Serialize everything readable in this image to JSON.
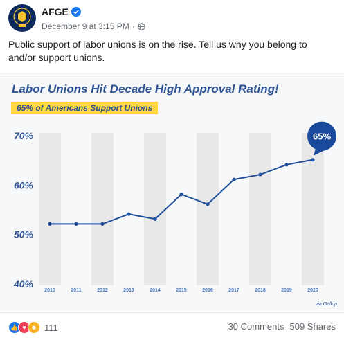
{
  "post": {
    "author": "AFGE",
    "timestamp": "December 9 at 3:15 PM",
    "separator": "·",
    "more_label": "···",
    "text": "Public support of labor unions is on the rise. Tell us why you belong to and/or support unions."
  },
  "icons": {
    "verified": "verified-badge-icon",
    "audience": "globe-icon",
    "reactions": [
      "like-icon",
      "love-icon",
      "haha-icon"
    ]
  },
  "colors": {
    "brand_blue": "#2f5597",
    "line": "#1f4e9a",
    "highlight": "#ffd93d",
    "stripe": "#e8e8e8"
  },
  "chart_data": {
    "type": "line",
    "title": "Labor Unions Hit Decade High Approval Rating!",
    "subtitle": "65% of Americans Support Unions",
    "x": [
      "2010",
      "2011",
      "2012",
      "2013",
      "2014",
      "2015",
      "2016",
      "2017",
      "2018",
      "2019",
      "2020"
    ],
    "values": [
      52,
      52,
      52,
      54,
      53,
      58,
      56,
      61,
      62,
      64,
      65
    ],
    "yticks": [
      "70%",
      "60%",
      "50%",
      "40%"
    ],
    "ylim": [
      40,
      70
    ],
    "callout": "65%",
    "source": "via Gallup",
    "grid": "alternating vertical stripes"
  },
  "footer": {
    "reaction_count": "111",
    "comments": "30 Comments",
    "shares": "509 Shares"
  }
}
